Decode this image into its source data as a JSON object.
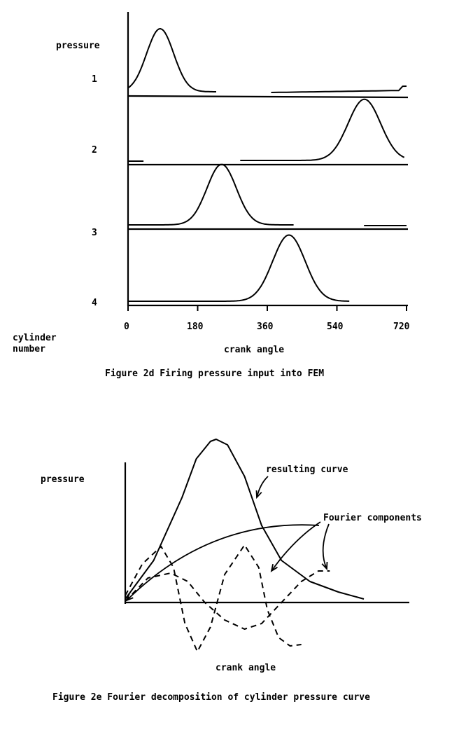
{
  "chart_data": [
    {
      "type": "line",
      "title": "Figure 2d Firing pressure input into FEM",
      "xlabel": "crank angle",
      "ylabel": "pressure",
      "row_label": "cylinder number",
      "x_ticks": [
        "0",
        "180",
        "360",
        "540",
        "720"
      ],
      "xlim": [
        0,
        720
      ],
      "series": [
        {
          "name": "1",
          "peak_angle": 83,
          "peak_pressure": 1.0,
          "spread": 35,
          "range": [
            0,
            230
          ],
          "tail": [
            370,
            720
          ]
        },
        {
          "name": "2",
          "peak_angle": 611,
          "peak_pressure": 0.97,
          "spread": 42,
          "range": [
            290,
            715
          ],
          "tail": [
            0,
            40
          ]
        },
        {
          "name": "3",
          "peak_angle": 242,
          "peak_pressure": 0.96,
          "spread": 38,
          "range": [
            0,
            430
          ],
          "tail": [
            610,
            720
          ]
        },
        {
          "name": "4",
          "peak_angle": 416,
          "peak_pressure": 1.05,
          "spread": 42,
          "range": [
            0,
            575
          ],
          "tail": null
        }
      ]
    },
    {
      "type": "line",
      "title": "Figure 2e Fourier decomposition of cylinder pressure curve",
      "xlabel": "crank angle",
      "ylabel": "pressure",
      "annotations": [
        "resulting curve",
        "Fourier components"
      ],
      "series": [
        {
          "name": "resulting curve",
          "style": "solid",
          "points": [
            [
              0,
              0.05
            ],
            [
              10,
              0.6
            ],
            [
              20,
              1.5
            ],
            [
              25,
              2.05
            ],
            [
              30,
              2.3
            ],
            [
              32,
              2.33
            ],
            [
              36,
              2.25
            ],
            [
              42,
              1.8
            ],
            [
              48,
              1.1
            ],
            [
              55,
              0.6
            ],
            [
              65,
              0.3
            ],
            [
              75,
              0.15
            ],
            [
              84,
              0.05
            ]
          ]
        },
        {
          "name": "Fourier component 1",
          "style": "dashed",
          "points": [
            [
              0,
              0.1
            ],
            [
              6,
              0.55
            ],
            [
              12.6,
              0.8
            ],
            [
              17,
              0.5
            ],
            [
              21,
              -0.3
            ],
            [
              25.4,
              -0.7
            ],
            [
              30,
              -0.35
            ],
            [
              35,
              0.4
            ],
            [
              42,
              0.82
            ],
            [
              47,
              0.5
            ],
            [
              50,
              -0.1
            ],
            [
              54,
              -0.5
            ],
            [
              58,
              -0.62
            ],
            [
              62,
              -0.6
            ]
          ]
        },
        {
          "name": "Fourier component 2",
          "style": "dashed",
          "points": [
            [
              0,
              0.02
            ],
            [
              8,
              0.35
            ],
            [
              16,
              0.42
            ],
            [
              22,
              0.3
            ],
            [
              28,
              0.0
            ],
            [
              35,
              -0.25
            ],
            [
              42,
              -0.38
            ],
            [
              48,
              -0.3
            ],
            [
              55,
              0.0
            ],
            [
              62,
              0.3
            ],
            [
              68,
              0.45
            ],
            [
              72,
              0.45
            ]
          ]
        }
      ]
    }
  ]
}
